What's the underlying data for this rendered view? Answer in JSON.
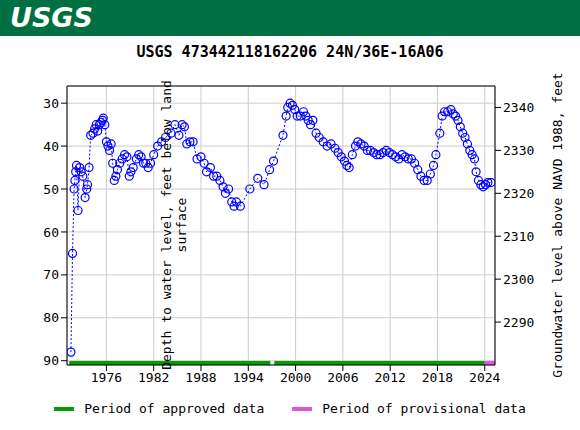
{
  "chart_data": {
    "type": "scatter",
    "header": "USGS",
    "title": "USGS 473442118162206 24N/36E-16A06",
    "y_label": "Depth to water level, feet below land surface",
    "y2_label": "Groundwater level above NAVD 1988, feet",
    "xlim": [
      1971,
      2025.3
    ],
    "xticks": [
      1976,
      1982,
      1988,
      1994,
      2000,
      2006,
      2012,
      2018,
      2024
    ],
    "ylim": [
      26,
      91
    ],
    "yticks": [
      30,
      40,
      50,
      60,
      70,
      80,
      90
    ],
    "y2lim": [
      2280,
      2345
    ],
    "y2ticks": [
      2290,
      2300,
      2310,
      2320,
      2330,
      2340
    ],
    "grid": true,
    "legend": "bottom",
    "series": [
      {
        "name": "Depth to water level",
        "color": "#0000ff",
        "marker": "circle",
        "line_style": "dotted",
        "x": [
          1971.5,
          1971.7,
          1971.9,
          1972.0,
          1972.1,
          1972.2,
          1972.4,
          1972.6,
          1972.8,
          1973.0,
          1973.3,
          1973.5,
          1973.6,
          1973.8,
          1974.0,
          1974.3,
          1974.5,
          1974.7,
          1974.9,
          1975.1,
          1975.3,
          1975.5,
          1975.6,
          1975.8,
          1976.0,
          1976.2,
          1976.4,
          1976.6,
          1976.8,
          1977.0,
          1977.2,
          1977.4,
          1977.7,
          1978.0,
          1978.3,
          1978.6,
          1978.9,
          1979.1,
          1979.4,
          1979.8,
          1980.1,
          1980.4,
          1980.7,
          1981.0,
          1981.3,
          1981.6,
          1982.0,
          1982.5,
          1983.0,
          1983.5,
          1984.2,
          1984.7,
          1985.2,
          1985.6,
          1985.9,
          1986.2,
          1986.6,
          1987.0,
          1987.5,
          1988.0,
          1988.4,
          1988.7,
          1989.2,
          1989.6,
          1990.0,
          1990.4,
          1990.8,
          1991.1,
          1991.5,
          1991.9,
          1992.2,
          1992.5,
          1993.0,
          1994.2,
          1995.2,
          1996.0,
          1996.7,
          1997.2,
          1998.4,
          1998.8,
          1999.0,
          1999.3,
          1999.6,
          1999.9,
          2000.2,
          2000.6,
          2001.0,
          2001.3,
          2001.6,
          2001.9,
          2002.2,
          2002.6,
          2003.0,
          2003.5,
          2004.0,
          2004.5,
          2005.0,
          2005.4,
          2005.8,
          2006.2,
          2006.5,
          2006.8,
          2007.2,
          2007.6,
          2007.9,
          2008.3,
          2008.7,
          2009.1,
          2009.5,
          2009.9,
          2010.3,
          2010.7,
          2011.1,
          2011.5,
          2011.9,
          2012.3,
          2012.7,
          2013.1,
          2013.5,
          2013.9,
          2014.3,
          2014.7,
          2015.1,
          2015.5,
          2015.9,
          2016.3,
          2016.7,
          2017.1,
          2017.5,
          2017.8,
          2018.3,
          2018.6,
          2018.9,
          2019.3,
          2019.7,
          2020.0,
          2020.3,
          2020.6,
          2020.9,
          2021.2,
          2021.5,
          2021.8,
          2022.1,
          2022.4,
          2022.7,
          2022.9,
          2023.2,
          2023.5,
          2023.8,
          2024.1,
          2024.4,
          2024.8
        ],
        "values": [
          88,
          65,
          50,
          48,
          46,
          44.5,
          55,
          45,
          46,
          47,
          52,
          50,
          49,
          45,
          37.5,
          37,
          36,
          35,
          36.5,
          35,
          34.5,
          34,
          33.5,
          35,
          39,
          40,
          41,
          39.5,
          44,
          48,
          47,
          45.5,
          44,
          43,
          42,
          42.5,
          47,
          46,
          45,
          43,
          42,
          42.5,
          44,
          44,
          45,
          44,
          42,
          40,
          39,
          38,
          37,
          35,
          37.5,
          35,
          35.5,
          39.5,
          39,
          39,
          43,
          42.5,
          44,
          46,
          45,
          47,
          47,
          48,
          49.5,
          51,
          50,
          53,
          54,
          53,
          54,
          50,
          47.5,
          49,
          45.5,
          43.5,
          37.5,
          33,
          31,
          30,
          30.5,
          31.5,
          33,
          33,
          32,
          33,
          34,
          35,
          34,
          37,
          38,
          39,
          40,
          39.5,
          40.5,
          41.5,
          42.5,
          43.5,
          44.5,
          45,
          42,
          40,
          39,
          39.5,
          40,
          41,
          41,
          41.5,
          42,
          42,
          41.5,
          41,
          41.5,
          42,
          42.5,
          43,
          42,
          42.5,
          43,
          43,
          44,
          45.5,
          47,
          48,
          48,
          46.5,
          44.5,
          42,
          37,
          33,
          32,
          32,
          31.5,
          32.5,
          33,
          34,
          35.5,
          37,
          38,
          39.5,
          41,
          42,
          43,
          46,
          48,
          49,
          49.5,
          49,
          48.5,
          48.5
        ]
      }
    ],
    "periods": [
      {
        "name": "Period of approved data",
        "color": "#00a000",
        "start": 1971.3,
        "end": 1996.8
      },
      {
        "name": "Period of approved data",
        "color": "#00a000",
        "start": 1997.3,
        "end": 2024.0
      },
      {
        "name": "Period of provisional data",
        "color": "#e055e0",
        "start": 2024.0,
        "end": 2025.3
      }
    ]
  }
}
